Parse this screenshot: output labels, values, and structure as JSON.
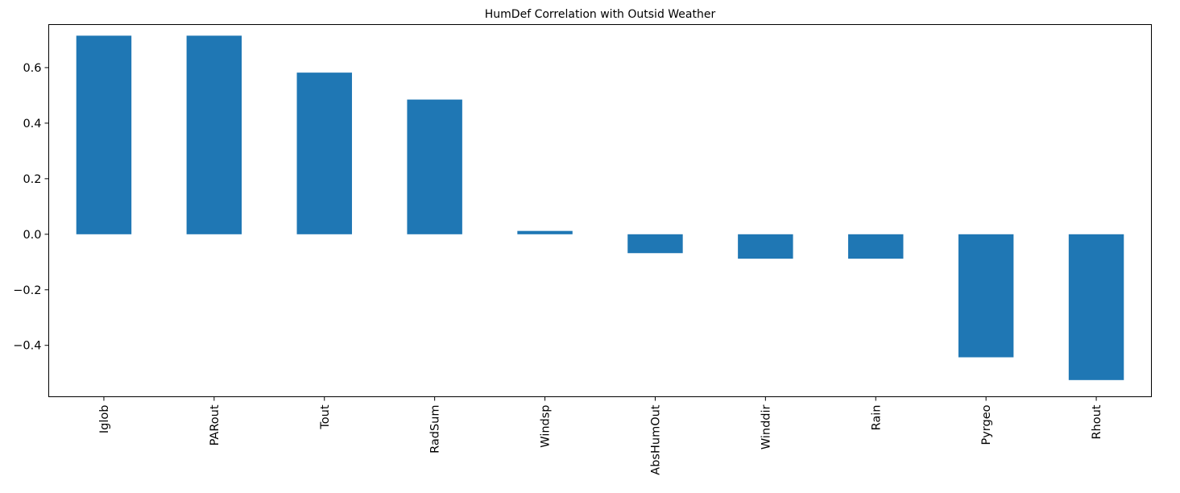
{
  "chart_data": {
    "type": "bar",
    "title": "HumDef Correlation with Outsid Weather",
    "xlabel": "",
    "ylabel": "",
    "categories": [
      "Iglob",
      "PARout",
      "Tout",
      "RadSum",
      "Windsp",
      "AbsHumOut",
      "Winddir",
      "Rain",
      "Pyrgeo",
      "Rhout"
    ],
    "values": [
      0.715,
      0.715,
      0.582,
      0.485,
      0.012,
      -0.068,
      -0.088,
      -0.088,
      -0.443,
      -0.525
    ],
    "ylim": [
      -0.585,
      0.755
    ],
    "yticks": [
      -0.4,
      -0.2,
      0.0,
      0.2,
      0.4,
      0.6
    ],
    "ytick_labels": [
      "−0.4",
      "−0.2",
      "0.0",
      "0.2",
      "0.4",
      "0.6"
    ],
    "bar_color": "#1f77b4",
    "grid": false,
    "legend": "none"
  }
}
